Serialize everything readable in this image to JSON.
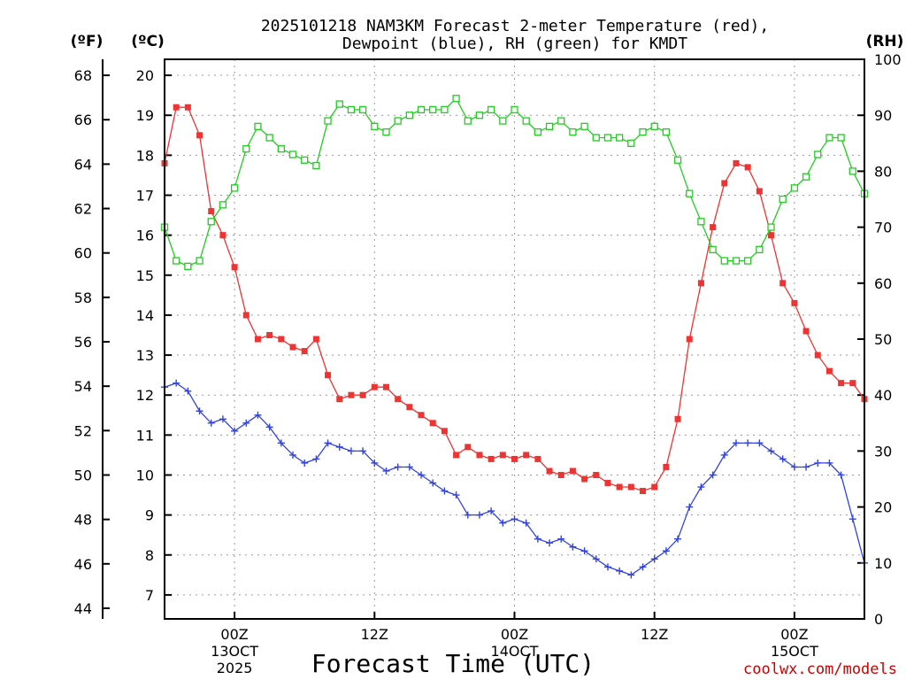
{
  "chart_data": {
    "type": "line",
    "title": "2025101218 NAM3KM Forecast 2-meter Temperature (red),",
    "subtitle": "Dewpoint (blue), RH (green) for KMDT",
    "axis_unit_labels": {
      "fahrenheit": "(ºF)",
      "celsius": "(ºC)",
      "rh": "(RH)"
    },
    "xlabel": "Forecast Time (UTC)",
    "credit": "coolwx.com/models",
    "x_range": [
      0,
      60
    ],
    "x_ticks": [
      {
        "x": 6,
        "label": "00Z",
        "date": "13OCT",
        "year": "2025"
      },
      {
        "x": 18,
        "label": "12Z",
        "date": "",
        "year": ""
      },
      {
        "x": 30,
        "label": "00Z",
        "date": "14OCT",
        "year": ""
      },
      {
        "x": 42,
        "label": "12Z",
        "date": "",
        "year": ""
      },
      {
        "x": 54,
        "label": "00Z",
        "date": "15OCT",
        "year": ""
      }
    ],
    "y_celsius": {
      "range": [
        6.4,
        20.4
      ],
      "ticks": [
        7,
        8,
        9,
        10,
        11,
        12,
        13,
        14,
        15,
        16,
        17,
        18,
        19,
        20
      ]
    },
    "y_fahrenheit": {
      "ticks": [
        44,
        46,
        48,
        50,
        52,
        54,
        56,
        58,
        60,
        62,
        64,
        66,
        68
      ]
    },
    "y_rh": {
      "range": [
        0,
        100
      ],
      "ticks": [
        0,
        10,
        20,
        30,
        40,
        50,
        60,
        70,
        80,
        90,
        100
      ]
    },
    "grid": true,
    "series": [
      {
        "name": "2-meter Temperature",
        "unit": "C",
        "color": "#ee3333",
        "marker": "filled-square",
        "values": [
          17.8,
          19.2,
          19.2,
          18.5,
          16.6,
          16.0,
          15.2,
          14.0,
          13.4,
          13.5,
          13.4,
          13.2,
          13.1,
          13.4,
          12.5,
          11.9,
          12.0,
          12.0,
          12.2,
          12.2,
          11.9,
          11.7,
          11.5,
          11.3,
          11.1,
          10.5,
          10.7,
          10.5,
          10.4,
          10.5,
          10.4,
          10.5,
          10.4,
          10.1,
          10.0,
          10.1,
          9.9,
          10.0,
          9.8,
          9.7,
          9.7,
          9.6,
          9.7,
          10.2,
          11.4,
          13.4,
          14.8,
          16.2,
          17.3,
          17.8,
          17.7,
          17.1,
          16.0,
          14.8,
          14.3,
          13.6,
          13.0,
          12.6,
          12.3,
          12.3,
          11.9
        ]
      },
      {
        "name": "Dewpoint",
        "unit": "C",
        "color": "#3344dd",
        "marker": "plus",
        "values": [
          12.2,
          12.3,
          12.1,
          11.6,
          11.3,
          11.4,
          11.1,
          11.3,
          11.5,
          11.2,
          10.8,
          10.5,
          10.3,
          10.4,
          10.8,
          10.7,
          10.6,
          10.6,
          10.3,
          10.1,
          10.2,
          10.2,
          10.0,
          9.8,
          9.6,
          9.5,
          9.0,
          9.0,
          9.1,
          8.8,
          8.9,
          8.8,
          8.4,
          8.3,
          8.4,
          8.2,
          8.1,
          7.9,
          7.7,
          7.6,
          7.5,
          7.7,
          7.9,
          8.1,
          8.4,
          9.2,
          9.7,
          10.0,
          10.5,
          10.8,
          10.8,
          10.8,
          10.6,
          10.4,
          10.2,
          10.2,
          10.3,
          10.3,
          10.0,
          8.9,
          7.8
        ]
      },
      {
        "name": "RH",
        "unit": "%",
        "color": "#22cc22",
        "marker": "open-square",
        "values": [
          70,
          64,
          63,
          64,
          71,
          74,
          77,
          84,
          88,
          86,
          84,
          83,
          82,
          81,
          89,
          92,
          91,
          91,
          88,
          87,
          89,
          90,
          91,
          91,
          91,
          93,
          89,
          90,
          91,
          89,
          91,
          89,
          87,
          88,
          89,
          87,
          88,
          86,
          86,
          86,
          85,
          87,
          88,
          87,
          82,
          76,
          71,
          66,
          64,
          64,
          64,
          66,
          70,
          75,
          77,
          79,
          83,
          86,
          86,
          80,
          76
        ]
      }
    ]
  }
}
